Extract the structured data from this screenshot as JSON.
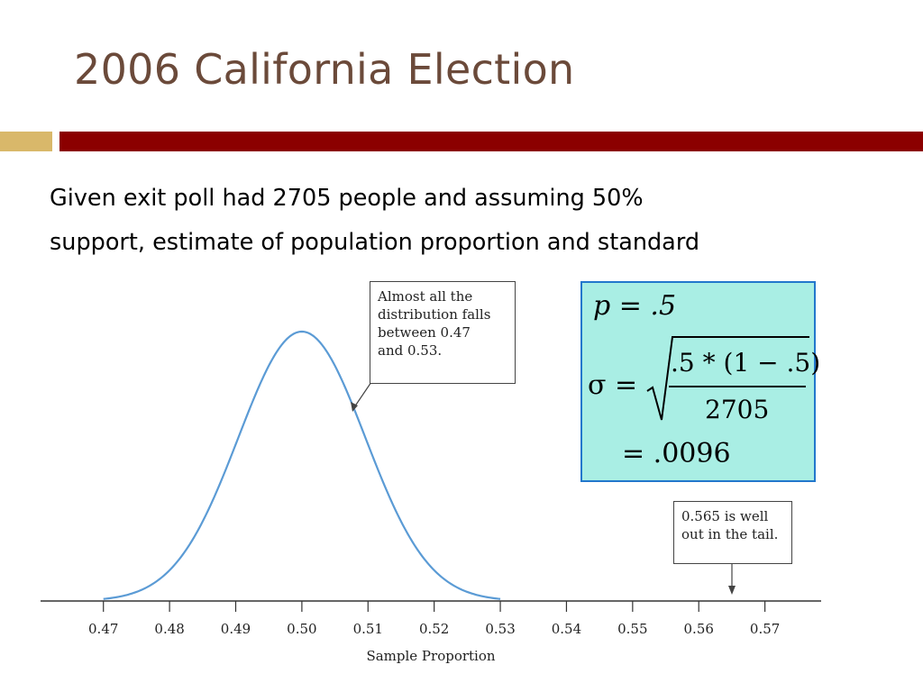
{
  "slide": {
    "title": "2006 California Election",
    "body_lines": [
      "Given exit poll had 2705 people and assuming 50%",
      "support, estimate of population proportion and standard"
    ],
    "accent_colors": {
      "title": "#6b4a3a",
      "gold_bar": "#d9b86a",
      "red_bar": "#8b0000"
    }
  },
  "formula": {
    "p_line": "p = .5",
    "sigma_symbol": "σ =",
    "numerator": ".5 * (1 − .5)",
    "denominator": "2705",
    "result": "= .0096",
    "box_fill": "#a9eee4",
    "box_border": "#2277cc"
  },
  "callouts": {
    "peak_note": [
      "Almost all the",
      "distribution falls",
      "between 0.47",
      "and 0.53."
    ],
    "tail_note": [
      "0.565 is well",
      "out in the tail."
    ]
  },
  "chart_data": {
    "type": "line",
    "xlabel": "Sample Proportion",
    "ylabel": "",
    "x_ticks": [
      "0.47",
      "0.48",
      "0.49",
      "0.50",
      "0.51",
      "0.52",
      "0.53",
      "0.54",
      "0.55",
      "0.56",
      "0.57"
    ],
    "xlim": [
      0.4605,
      0.5785
    ],
    "series": [
      {
        "distribution": "normal",
        "mean": 0.5,
        "sd": 0.0096,
        "x_range": [
          0.47,
          0.53
        ],
        "color": "#5b9bd5"
      }
    ],
    "annotations": [
      {
        "text_ref": "callouts.peak_note",
        "points_to_x": 0.508
      },
      {
        "text_ref": "callouts.tail_note",
        "points_to_x": 0.565
      }
    ],
    "grid": false,
    "legend": "none"
  }
}
